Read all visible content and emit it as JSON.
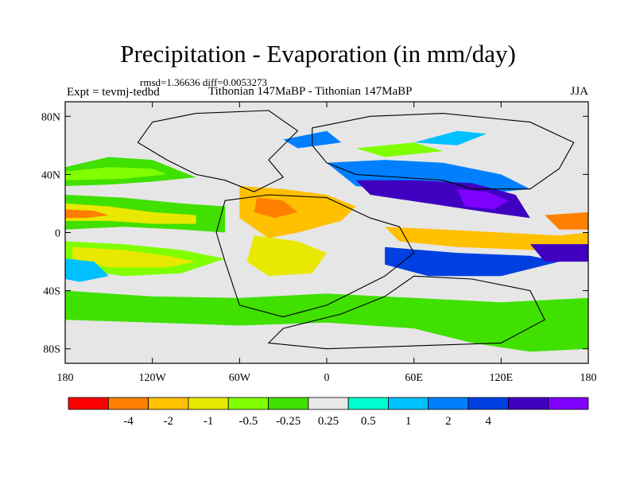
{
  "chart_data": {
    "type": "heatmap",
    "title": "Precipitation - Evaporation (in mm/day)",
    "stats": {
      "label_rmsd": "rmsd=",
      "rmsd": "1.36636",
      "label_diff": "diff=",
      "diff": "0.0053273"
    },
    "expt_label": "Expt = ",
    "expt": "tevmj-tedbd",
    "subtitle": "Tithonian 147MaBP - Tithonian 147MaBP",
    "season": "JJA",
    "xlim": [
      -180,
      180
    ],
    "ylim": [
      -90,
      90
    ],
    "x_ticks": [
      {
        "value": -180,
        "label": "180"
      },
      {
        "value": -120,
        "label": "120W"
      },
      {
        "value": -60,
        "label": "60W"
      },
      {
        "value": 0,
        "label": "0"
      },
      {
        "value": 60,
        "label": "60E"
      },
      {
        "value": 120,
        "label": "120E"
      },
      {
        "value": 180,
        "label": "180"
      }
    ],
    "y_ticks": [
      {
        "value": 80,
        "label": "80N"
      },
      {
        "value": 40,
        "label": "40N"
      },
      {
        "value": 0,
        "label": "0"
      },
      {
        "value": -40,
        "label": "40S"
      },
      {
        "value": -80,
        "label": "80S"
      }
    ],
    "colorbar": {
      "colors": [
        "#ff0000",
        "#ff8000",
        "#ffc000",
        "#e8e800",
        "#80ff00",
        "#40e000",
        "#e8e8e8",
        "#00ffd0",
        "#00c0ff",
        "#0080ff",
        "#0040e0",
        "#4000c0",
        "#8000ff"
      ],
      "levels": [
        -4,
        -2,
        -1,
        -0.5,
        -0.25,
        0.25,
        0.5,
        1,
        2,
        4
      ],
      "tick_labels": [
        "-4",
        "-2",
        "-1",
        "-0.5",
        "-0.25",
        "0.25",
        "0.5",
        "1",
        "2",
        "4"
      ]
    },
    "regions": [
      {
        "name": "north-pacific-wet-band",
        "bin": 5,
        "points": [
          [
            -180,
            45
          ],
          [
            -150,
            52
          ],
          [
            -120,
            50
          ],
          [
            -100,
            42
          ],
          [
            -90,
            38
          ],
          [
            -120,
            35
          ],
          [
            -150,
            33
          ],
          [
            -180,
            32
          ]
        ]
      },
      {
        "name": "north-pacific-wet-band-core",
        "bin": 4,
        "points": [
          [
            -180,
            42
          ],
          [
            -150,
            45
          ],
          [
            -120,
            44
          ],
          [
            -110,
            40
          ],
          [
            -140,
            37
          ],
          [
            -180,
            36
          ]
        ]
      },
      {
        "name": "pacific-itcz-outer",
        "bin": 5,
        "points": [
          [
            -180,
            26
          ],
          [
            -140,
            24
          ],
          [
            -100,
            20
          ],
          [
            -70,
            18
          ],
          [
            -70,
            0
          ],
          [
            -100,
            2
          ],
          [
            -140,
            4
          ],
          [
            -180,
            2
          ]
        ]
      },
      {
        "name": "pacific-itcz-dry",
        "bin": 3,
        "points": [
          [
            -180,
            20
          ],
          [
            -150,
            18
          ],
          [
            -120,
            14
          ],
          [
            -90,
            12
          ],
          [
            -90,
            6
          ],
          [
            -120,
            6
          ],
          [
            -150,
            8
          ],
          [
            -180,
            8
          ]
        ]
      },
      {
        "name": "pacific-itcz-core",
        "bin": 1,
        "points": [
          [
            -180,
            16
          ],
          [
            -160,
            15
          ],
          [
            -150,
            12
          ],
          [
            -165,
            10
          ],
          [
            -180,
            10
          ]
        ]
      },
      {
        "name": "south-pacific-wet-band",
        "bin": 4,
        "points": [
          [
            -180,
            -6
          ],
          [
            -140,
            -8
          ],
          [
            -100,
            -12
          ],
          [
            -70,
            -18
          ],
          [
            -100,
            -28
          ],
          [
            -140,
            -30
          ],
          [
            -180,
            -24
          ]
        ]
      },
      {
        "name": "south-pacific-wet-core",
        "bin": 3,
        "points": [
          [
            -175,
            -10
          ],
          [
            -140,
            -12
          ],
          [
            -110,
            -16
          ],
          [
            -90,
            -20
          ],
          [
            -110,
            -24
          ],
          [
            -150,
            -24
          ],
          [
            -175,
            -18
          ]
        ]
      },
      {
        "name": "south-pacific-moist-patch",
        "bin": 8,
        "points": [
          [
            -180,
            -18
          ],
          [
            -160,
            -20
          ],
          [
            -150,
            -30
          ],
          [
            -170,
            -34
          ],
          [
            -180,
            -32
          ]
        ]
      },
      {
        "name": "southern-ocean-wet-band",
        "bin": 5,
        "points": [
          [
            -180,
            -40
          ],
          [
            -120,
            -44
          ],
          [
            -60,
            -45
          ],
          [
            0,
            -42
          ],
          [
            60,
            -45
          ],
          [
            120,
            -48
          ],
          [
            180,
            -45
          ],
          [
            180,
            -80
          ],
          [
            140,
            -82
          ],
          [
            100,
            -76
          ],
          [
            60,
            -66
          ],
          [
            0,
            -62
          ],
          [
            -60,
            -64
          ],
          [
            -120,
            -62
          ],
          [
            -180,
            -60
          ]
        ]
      },
      {
        "name": "tethys-dry-region",
        "bin": 2,
        "points": [
          [
            -60,
            32
          ],
          [
            -30,
            30
          ],
          [
            0,
            26
          ],
          [
            20,
            18
          ],
          [
            10,
            8
          ],
          [
            -20,
            0
          ],
          [
            -40,
            -4
          ],
          [
            -60,
            10
          ]
        ]
      },
      {
        "name": "tethys-dry-core",
        "bin": 1,
        "points": [
          [
            -48,
            24
          ],
          [
            -30,
            22
          ],
          [
            -20,
            14
          ],
          [
            -36,
            10
          ],
          [
            -50,
            14
          ]
        ]
      },
      {
        "name": "south-atlantic-dry",
        "bin": 3,
        "points": [
          [
            -50,
            -2
          ],
          [
            -20,
            -6
          ],
          [
            0,
            -14
          ],
          [
            -10,
            -28
          ],
          [
            -40,
            -30
          ],
          [
            -55,
            -20
          ]
        ]
      },
      {
        "name": "north-tethys-moist-band",
        "bin": 9,
        "points": [
          [
            0,
            48
          ],
          [
            40,
            50
          ],
          [
            80,
            48
          ],
          [
            120,
            40
          ],
          [
            140,
            30
          ],
          [
            100,
            26
          ],
          [
            60,
            28
          ],
          [
            20,
            32
          ]
        ]
      },
      {
        "name": "asian-monsoon-wet",
        "bin": 11,
        "points": [
          [
            20,
            36
          ],
          [
            60,
            36
          ],
          [
            100,
            34
          ],
          [
            130,
            26
          ],
          [
            140,
            10
          ],
          [
            110,
            14
          ],
          [
            70,
            20
          ],
          [
            30,
            26
          ]
        ]
      },
      {
        "name": "asian-monsoon-core",
        "bin": 12,
        "points": [
          [
            90,
            30
          ],
          [
            110,
            28
          ],
          [
            125,
            22
          ],
          [
            115,
            16
          ],
          [
            95,
            18
          ]
        ]
      },
      {
        "name": "west-pacific-dry-band",
        "bin": 2,
        "points": [
          [
            40,
            4
          ],
          [
            80,
            2
          ],
          [
            120,
            0
          ],
          [
            160,
            -2
          ],
          [
            180,
            0
          ],
          [
            180,
            -14
          ],
          [
            140,
            -12
          ],
          [
            90,
            -10
          ],
          [
            50,
            -6
          ]
        ]
      },
      {
        "name": "west-pacific-dry-core",
        "bin": 1,
        "points": [
          [
            150,
            12
          ],
          [
            180,
            14
          ],
          [
            180,
            2
          ],
          [
            160,
            2
          ]
        ]
      },
      {
        "name": "south-tethys-wet",
        "bin": 10,
        "points": [
          [
            40,
            -10
          ],
          [
            90,
            -14
          ],
          [
            140,
            -16
          ],
          [
            160,
            -20
          ],
          [
            120,
            -30
          ],
          [
            70,
            -30
          ],
          [
            40,
            -22
          ]
        ]
      },
      {
        "name": "east-pacific-wet",
        "bin": 11,
        "points": [
          [
            140,
            -8
          ],
          [
            180,
            -8
          ],
          [
            180,
            -20
          ],
          [
            150,
            -20
          ]
        ]
      },
      {
        "name": "arctic-moist-patch",
        "bin": 8,
        "points": [
          [
            60,
            62
          ],
          [
            90,
            70
          ],
          [
            110,
            68
          ],
          [
            90,
            60
          ]
        ]
      },
      {
        "name": "laurasia-wet-patch",
        "bin": 4,
        "points": [
          [
            20,
            58
          ],
          [
            60,
            62
          ],
          [
            80,
            56
          ],
          [
            40,
            52
          ]
        ]
      },
      {
        "name": "greenland-moist",
        "bin": 9,
        "points": [
          [
            -30,
            64
          ],
          [
            0,
            70
          ],
          [
            10,
            62
          ],
          [
            -20,
            58
          ]
        ]
      }
    ],
    "coastlines": [
      {
        "name": "north-america",
        "points": [
          [
            -120,
            76
          ],
          [
            -90,
            82
          ],
          [
            -40,
            84
          ],
          [
            -20,
            70
          ],
          [
            -40,
            50
          ],
          [
            -30,
            38
          ],
          [
            -50,
            28
          ],
          [
            -70,
            36
          ],
          [
            -90,
            40
          ],
          [
            -110,
            50
          ],
          [
            -130,
            62
          ]
        ]
      },
      {
        "name": "eurasia",
        "points": [
          [
            -10,
            72
          ],
          [
            30,
            80
          ],
          [
            80,
            82
          ],
          [
            140,
            76
          ],
          [
            170,
            62
          ],
          [
            160,
            44
          ],
          [
            140,
            30
          ],
          [
            120,
            30
          ],
          [
            100,
            30
          ],
          [
            80,
            36
          ],
          [
            50,
            38
          ],
          [
            20,
            40
          ],
          [
            0,
            48
          ],
          [
            -10,
            60
          ]
        ]
      },
      {
        "name": "africa-south-america",
        "points": [
          [
            -70,
            22
          ],
          [
            -40,
            26
          ],
          [
            0,
            24
          ],
          [
            30,
            10
          ],
          [
            50,
            4
          ],
          [
            60,
            -14
          ],
          [
            40,
            -30
          ],
          [
            0,
            -50
          ],
          [
            -30,
            -58
          ],
          [
            -60,
            -50
          ],
          [
            -70,
            -20
          ],
          [
            -76,
            0
          ]
        ]
      },
      {
        "name": "india-australia-antarctica",
        "points": [
          [
            60,
            -30
          ],
          [
            100,
            -32
          ],
          [
            140,
            -40
          ],
          [
            150,
            -60
          ],
          [
            120,
            -76
          ],
          [
            60,
            -78
          ],
          [
            0,
            -80
          ],
          [
            -40,
            -76
          ],
          [
            -30,
            -66
          ],
          [
            10,
            -56
          ],
          [
            40,
            -44
          ]
        ]
      }
    ]
  }
}
